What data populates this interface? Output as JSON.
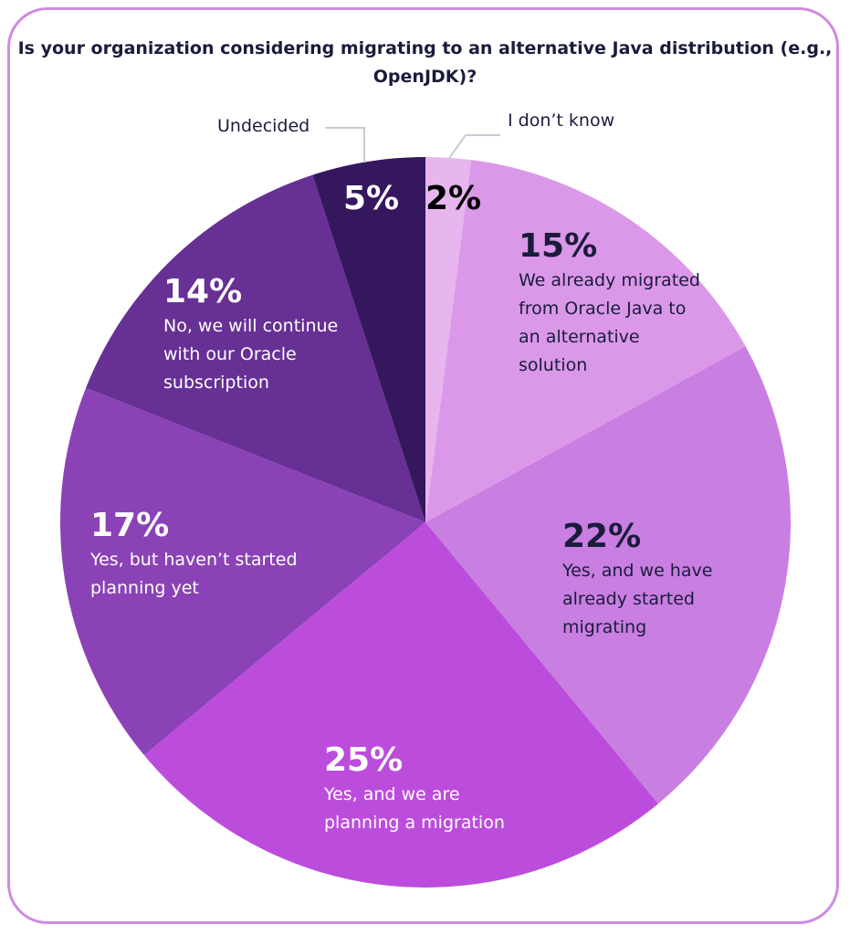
{
  "chart_data": {
    "type": "pie",
    "title": "Is your organization considering migrating to an alternative Java distribution (e.g., OpenJDK)?",
    "start_angle": "12 o'clock",
    "direction": "clockwise",
    "slices": [
      {
        "label": "I don’t know",
        "value": 2,
        "value_label": "2%",
        "color": "#e8b6ee"
      },
      {
        "label": "We already migrated from Oracle Java to an alternative solution",
        "value": 15,
        "value_label": "15%",
        "color": "#db98e9"
      },
      {
        "label": "Yes, and we have already started migrating",
        "value": 22,
        "value_label": "22%",
        "color": "#c97ee2"
      },
      {
        "label": "Yes, and we are planning a migration",
        "value": 25,
        "value_label": "25%",
        "color": "#bc4ddc"
      },
      {
        "label": "Yes, but haven’t started planning yet",
        "value": 17,
        "value_label": "17%",
        "color": "#8b42b6"
      },
      {
        "label": "No, we will continue with our Oracle subscription",
        "value": 14,
        "value_label": "14%",
        "color": "#673094"
      },
      {
        "label": "Undecided",
        "value": 5,
        "value_label": "5%",
        "color": "#35175e"
      }
    ]
  },
  "frame_color": "#d08ae0"
}
